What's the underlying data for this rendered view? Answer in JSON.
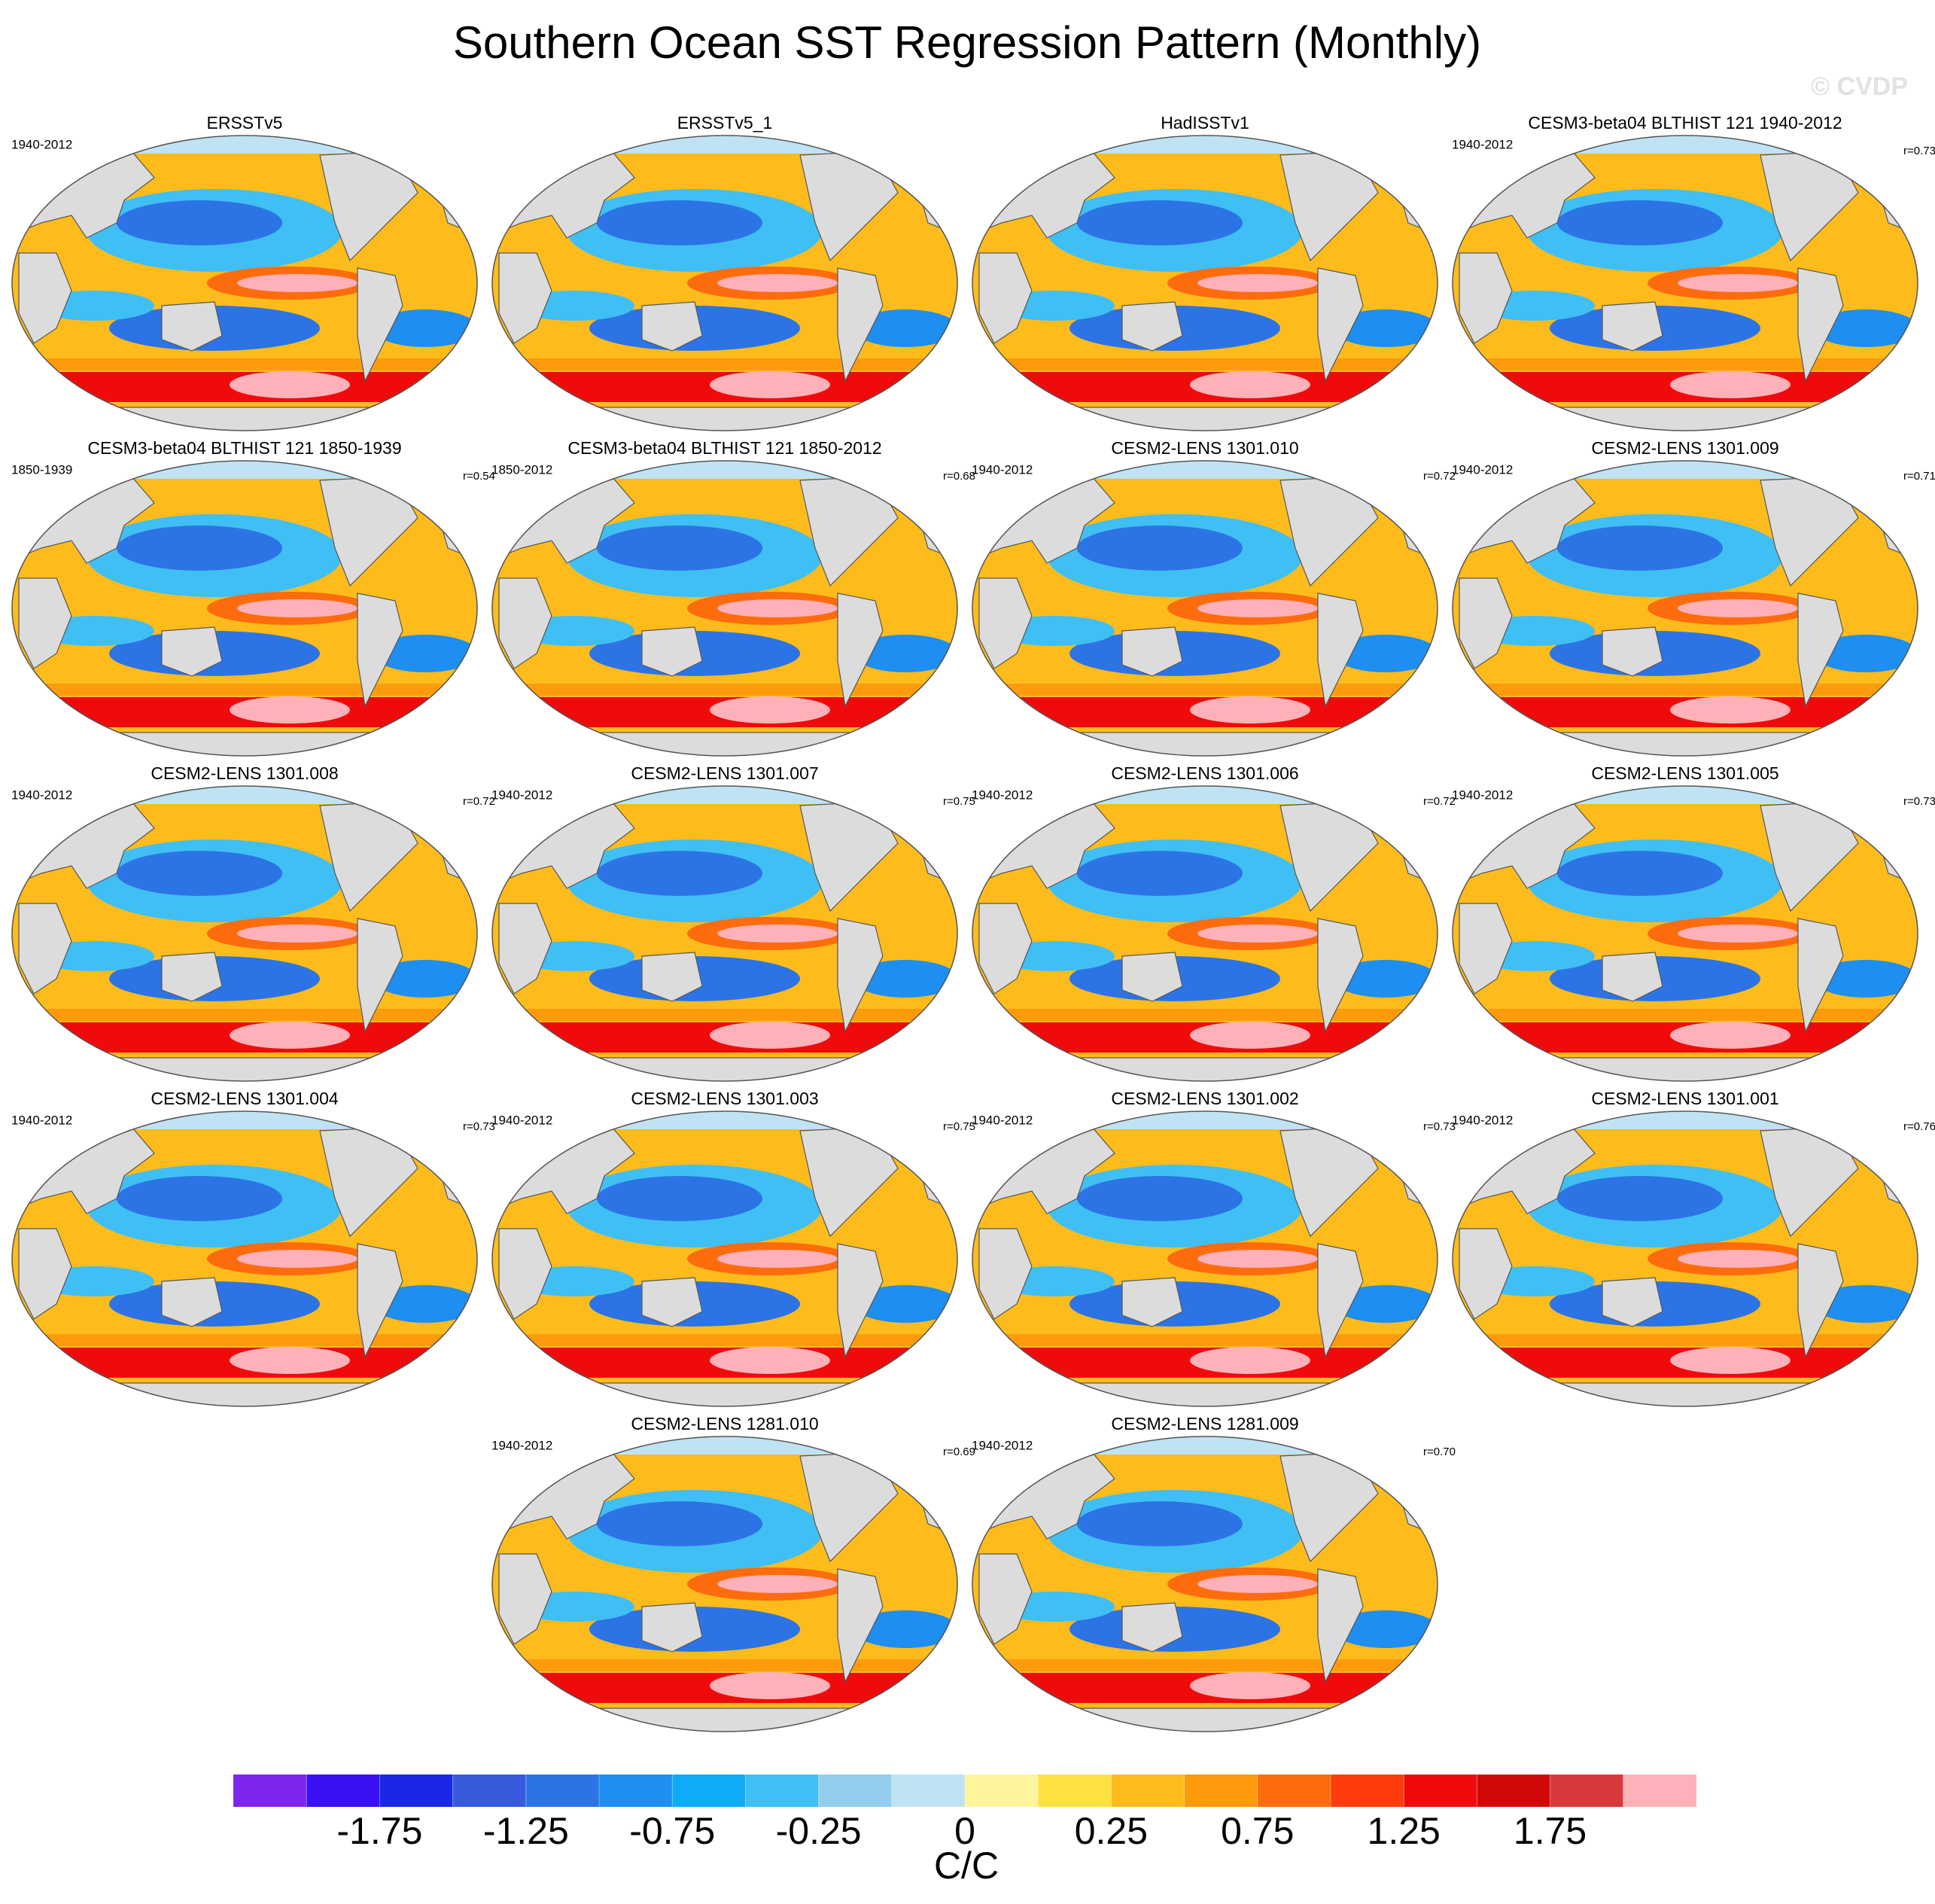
{
  "title": "Southern Ocean SST Regression Pattern (Monthly)",
  "watermark": "© CVDP",
  "panels": [
    {
      "title": "ERSSTv5",
      "period": "1940-2012"
    },
    {
      "title": "ERSSTv5_1"
    },
    {
      "title": "HadISSTv1"
    },
    {
      "title": "CESM3-beta04 BLTHIST 121 1940-2012",
      "period": "1940-2012",
      "r": "r=0.73"
    },
    {
      "title": "CESM3-beta04 BLTHIST 121 1850-1939",
      "period": "1850-1939",
      "r": "r=0.54"
    },
    {
      "title": "CESM3-beta04 BLTHIST 121 1850-2012",
      "period": "1850-2012",
      "r": "r=0.68"
    },
    {
      "title": "CESM2-LENS 1301.010",
      "period": "1940-2012",
      "r": "r=0.72"
    },
    {
      "title": "CESM2-LENS 1301.009",
      "period": "1940-2012",
      "r": "r=0.71"
    },
    {
      "title": "CESM2-LENS 1301.008",
      "period": "1940-2012",
      "r": "r=0.72"
    },
    {
      "title": "CESM2-LENS 1301.007",
      "period": "1940-2012",
      "r": "r=0.75"
    },
    {
      "title": "CESM2-LENS 1301.006",
      "period": "1940-2012",
      "r": "r=0.72"
    },
    {
      "title": "CESM2-LENS 1301.005",
      "period": "1940-2012",
      "r": "r=0.73"
    },
    {
      "title": "CESM2-LENS 1301.004",
      "period": "1940-2012",
      "r": "r=0.73"
    },
    {
      "title": "CESM2-LENS 1301.003",
      "period": "1940-2012",
      "r": "r=0.75"
    },
    {
      "title": "CESM2-LENS 1301.002",
      "period": "1940-2012",
      "r": "r=0.73"
    },
    {
      "title": "CESM2-LENS 1301.001",
      "period": "1940-2012",
      "r": "r=0.76"
    },
    {
      "title": "CESM2-LENS 1281.010",
      "period": "1940-2012",
      "r": "r=0.69"
    },
    {
      "title": "CESM2-LENS 1281.009",
      "period": "1940-2012",
      "r": "r=0.70"
    }
  ],
  "colorbar": {
    "levels": [
      -2,
      -1.75,
      -1.5,
      -1.25,
      -1,
      -0.75,
      -0.5,
      -0.25,
      -0.1,
      0,
      0.1,
      0.25,
      0.5,
      0.75,
      1,
      1.25,
      1.5,
      1.75,
      2
    ],
    "label_stride": 2,
    "colors": [
      "#7f26ec",
      "#3a10f5",
      "#1a28e6",
      "#385adc",
      "#2c74e6",
      "#1e8ef0",
      "#0eacf6",
      "#40bff4",
      "#92cdec",
      "#c0e3f4",
      "#fff59e",
      "#fde13e",
      "#fdbc1c",
      "#fd9b0c",
      "#fd6c0c",
      "#fd3c0a",
      "#ef0b0b",
      "#d00808",
      "#d83a3c",
      "#ffb1b9"
    ],
    "label": "C/C"
  }
}
